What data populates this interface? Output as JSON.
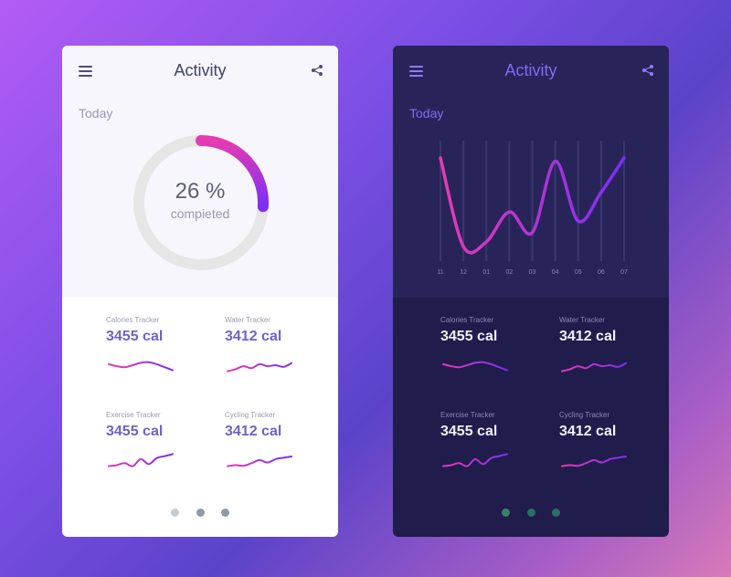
{
  "colors": {
    "gradient_start": "#e63bb0",
    "gradient_end": "#7b2ff7",
    "light_bg": "#ffffff",
    "dark_bg": "#201c4b"
  },
  "icons": {
    "menu": "hamburger-menu-icon",
    "share": "share-icon"
  },
  "light_screen": {
    "title": "Activity",
    "section_label": "Today",
    "progress": {
      "percent_text": "26 %",
      "caption": "compieted",
      "fraction": 0.26
    },
    "trackers": [
      {
        "label": "Calories Tracker",
        "value": "3455 cal",
        "trend": [
          0.55,
          0.45,
          0.4,
          0.5,
          0.62,
          0.65,
          0.55,
          0.4,
          0.25
        ]
      },
      {
        "label": "Water Tracker",
        "value": "3412 cal",
        "trend": [
          0.2,
          0.3,
          0.45,
          0.35,
          0.55,
          0.45,
          0.5,
          0.42,
          0.6
        ]
      },
      {
        "label": "Exercise Tracker",
        "value": "3455 cal",
        "trend": [
          0.2,
          0.25,
          0.35,
          0.2,
          0.55,
          0.3,
          0.6,
          0.7,
          0.8
        ]
      },
      {
        "label": "Cycling Tracker",
        "value": "3412 cal",
        "trend": [
          0.2,
          0.25,
          0.22,
          0.35,
          0.5,
          0.38,
          0.55,
          0.62,
          0.68
        ]
      }
    ],
    "pagination": {
      "count": 3,
      "active": 0
    }
  },
  "dark_screen": {
    "title": "Activity",
    "section_label": "Today",
    "chart_data": {
      "type": "line",
      "x": [
        "11",
        "12",
        "01",
        "02",
        "03",
        "04",
        "05",
        "06",
        "07"
      ],
      "y": [
        0.85,
        0.08,
        0.12,
        0.38,
        0.2,
        0.82,
        0.3,
        0.55,
        0.85
      ],
      "ylim": [
        0,
        1
      ],
      "grid": "vertical"
    },
    "trackers": [
      {
        "label": "Calories Tracker",
        "value": "3455 cal",
        "trend": [
          0.55,
          0.45,
          0.4,
          0.5,
          0.62,
          0.65,
          0.55,
          0.4,
          0.25
        ]
      },
      {
        "label": "Water Tracker",
        "value": "3412 cal",
        "trend": [
          0.2,
          0.3,
          0.45,
          0.35,
          0.55,
          0.45,
          0.5,
          0.42,
          0.6
        ]
      },
      {
        "label": "Exercise Tracker",
        "value": "3455 cal",
        "trend": [
          0.2,
          0.25,
          0.35,
          0.2,
          0.55,
          0.3,
          0.6,
          0.7,
          0.8
        ]
      },
      {
        "label": "Cycling Tracker",
        "value": "3412 cal",
        "trend": [
          0.2,
          0.25,
          0.22,
          0.35,
          0.5,
          0.38,
          0.55,
          0.62,
          0.68
        ]
      }
    ],
    "pagination": {
      "count": 3,
      "active": 0
    }
  }
}
